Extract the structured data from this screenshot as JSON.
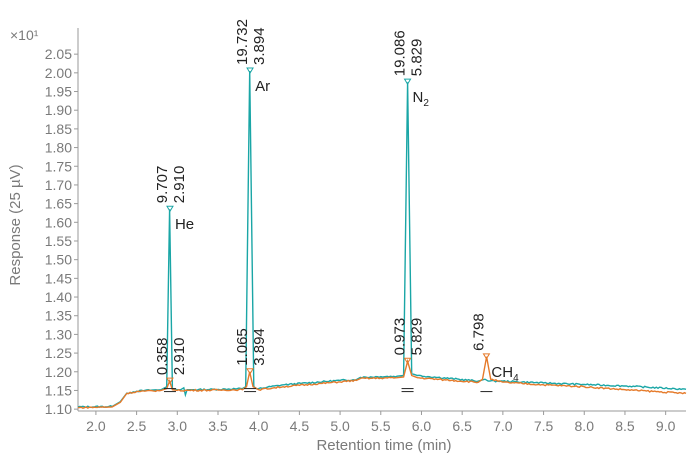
{
  "chart_data": {
    "type": "line",
    "xlabel": "Retention time (min)",
    "ylabel": "Response (25 µV)",
    "scale_label": "×10¹",
    "xlim": [
      1.78,
      9.25
    ],
    "ylim": [
      1.095,
      2.12
    ],
    "x_ticks": [
      "2.0",
      "2.5",
      "3.0",
      "3.5",
      "4.0",
      "4.5",
      "5.0",
      "5.5",
      "6.0",
      "6.5",
      "7.0",
      "7.5",
      "8.0",
      "8.5",
      "9.0"
    ],
    "y_ticks": [
      "1.10",
      "1.15",
      "1.20",
      "1.25",
      "1.30",
      "1.35",
      "1.40",
      "1.45",
      "1.50",
      "1.55",
      "1.60",
      "1.65",
      "1.70",
      "1.75",
      "1.80",
      "1.85",
      "1.90",
      "1.95",
      "2.00",
      "2.05"
    ],
    "colors": {
      "teal": "#1aa6a6",
      "orange": "#e57a2a"
    },
    "series": [
      {
        "x": [
          1.78,
          2.2,
          2.3,
          2.38,
          2.5,
          2.6,
          2.8,
          2.87,
          2.905,
          2.94,
          3.0,
          3.04,
          3.08,
          3.1,
          3.12,
          3.2,
          3.5,
          3.8,
          3.84,
          3.89,
          3.94,
          3.98,
          4.0,
          4.3,
          5.0,
          5.2,
          5.25,
          5.5,
          5.7,
          5.78,
          5.83,
          5.88,
          5.95,
          6.2,
          6.7,
          6.78,
          6.82,
          7.0,
          7.5,
          8.0,
          8.5,
          9.25
        ],
        "y": [
          1.106,
          1.107,
          1.12,
          1.143,
          1.148,
          1.15,
          1.152,
          1.16,
          1.635,
          1.155,
          1.152,
          1.152,
          1.157,
          1.138,
          1.152,
          1.152,
          1.153,
          1.155,
          1.16,
          2.005,
          1.16,
          1.154,
          1.155,
          1.165,
          1.177,
          1.179,
          1.185,
          1.187,
          1.188,
          1.19,
          1.975,
          1.195,
          1.19,
          1.185,
          1.175,
          1.18,
          1.175,
          1.175,
          1.17,
          1.166,
          1.162,
          1.153
        ]
      },
      {
        "x": [
          1.78,
          2.2,
          2.3,
          2.38,
          2.5,
          2.6,
          2.8,
          2.87,
          2.905,
          2.94,
          3.0,
          3.5,
          3.8,
          3.85,
          3.89,
          3.93,
          4.0,
          4.3,
          5.0,
          5.2,
          5.25,
          5.5,
          5.7,
          5.78,
          5.83,
          5.88,
          5.95,
          6.3,
          6.7,
          6.75,
          6.8,
          6.85,
          7.0,
          7.5,
          8.0,
          8.5,
          9.25
        ],
        "y": [
          1.104,
          1.106,
          1.118,
          1.142,
          1.147,
          1.148,
          1.15,
          1.155,
          1.175,
          1.152,
          1.15,
          1.151,
          1.152,
          1.16,
          1.2,
          1.16,
          1.152,
          1.16,
          1.173,
          1.177,
          1.182,
          1.183,
          1.184,
          1.186,
          1.228,
          1.19,
          1.184,
          1.178,
          1.172,
          1.18,
          1.24,
          1.18,
          1.172,
          1.165,
          1.16,
          1.152,
          1.142
        ]
      }
    ],
    "peaks": [
      {
        "x": 2.91,
        "y": 1.635,
        "area": "9.707",
        "rt": "2.910",
        "name": "He",
        "sub": "",
        "s": "teal"
      },
      {
        "x": 3.894,
        "y": 2.005,
        "area": "19.732",
        "rt": "3.894",
        "name": "Ar",
        "sub": "",
        "s": "teal"
      },
      {
        "x": 5.829,
        "y": 1.975,
        "area": "19.086",
        "rt": "5.829",
        "name": "N",
        "sub": "2",
        "s": "teal"
      },
      {
        "x": 2.91,
        "y": 1.175,
        "area": "0.358",
        "rt": "2.910",
        "name": "",
        "sub": "",
        "s": "orange"
      },
      {
        "x": 3.894,
        "y": 1.2,
        "area": "1.065",
        "rt": "3.894",
        "name": "",
        "sub": "",
        "s": "orange"
      },
      {
        "x": 5.829,
        "y": 1.228,
        "area": "0.973",
        "rt": "5.829",
        "name": "",
        "sub": "",
        "s": "orange"
      },
      {
        "x": 6.798,
        "y": 1.24,
        "area": "6.798",
        "rt": "",
        "name": "CH",
        "sub": "4",
        "s": "orange"
      }
    ]
  }
}
